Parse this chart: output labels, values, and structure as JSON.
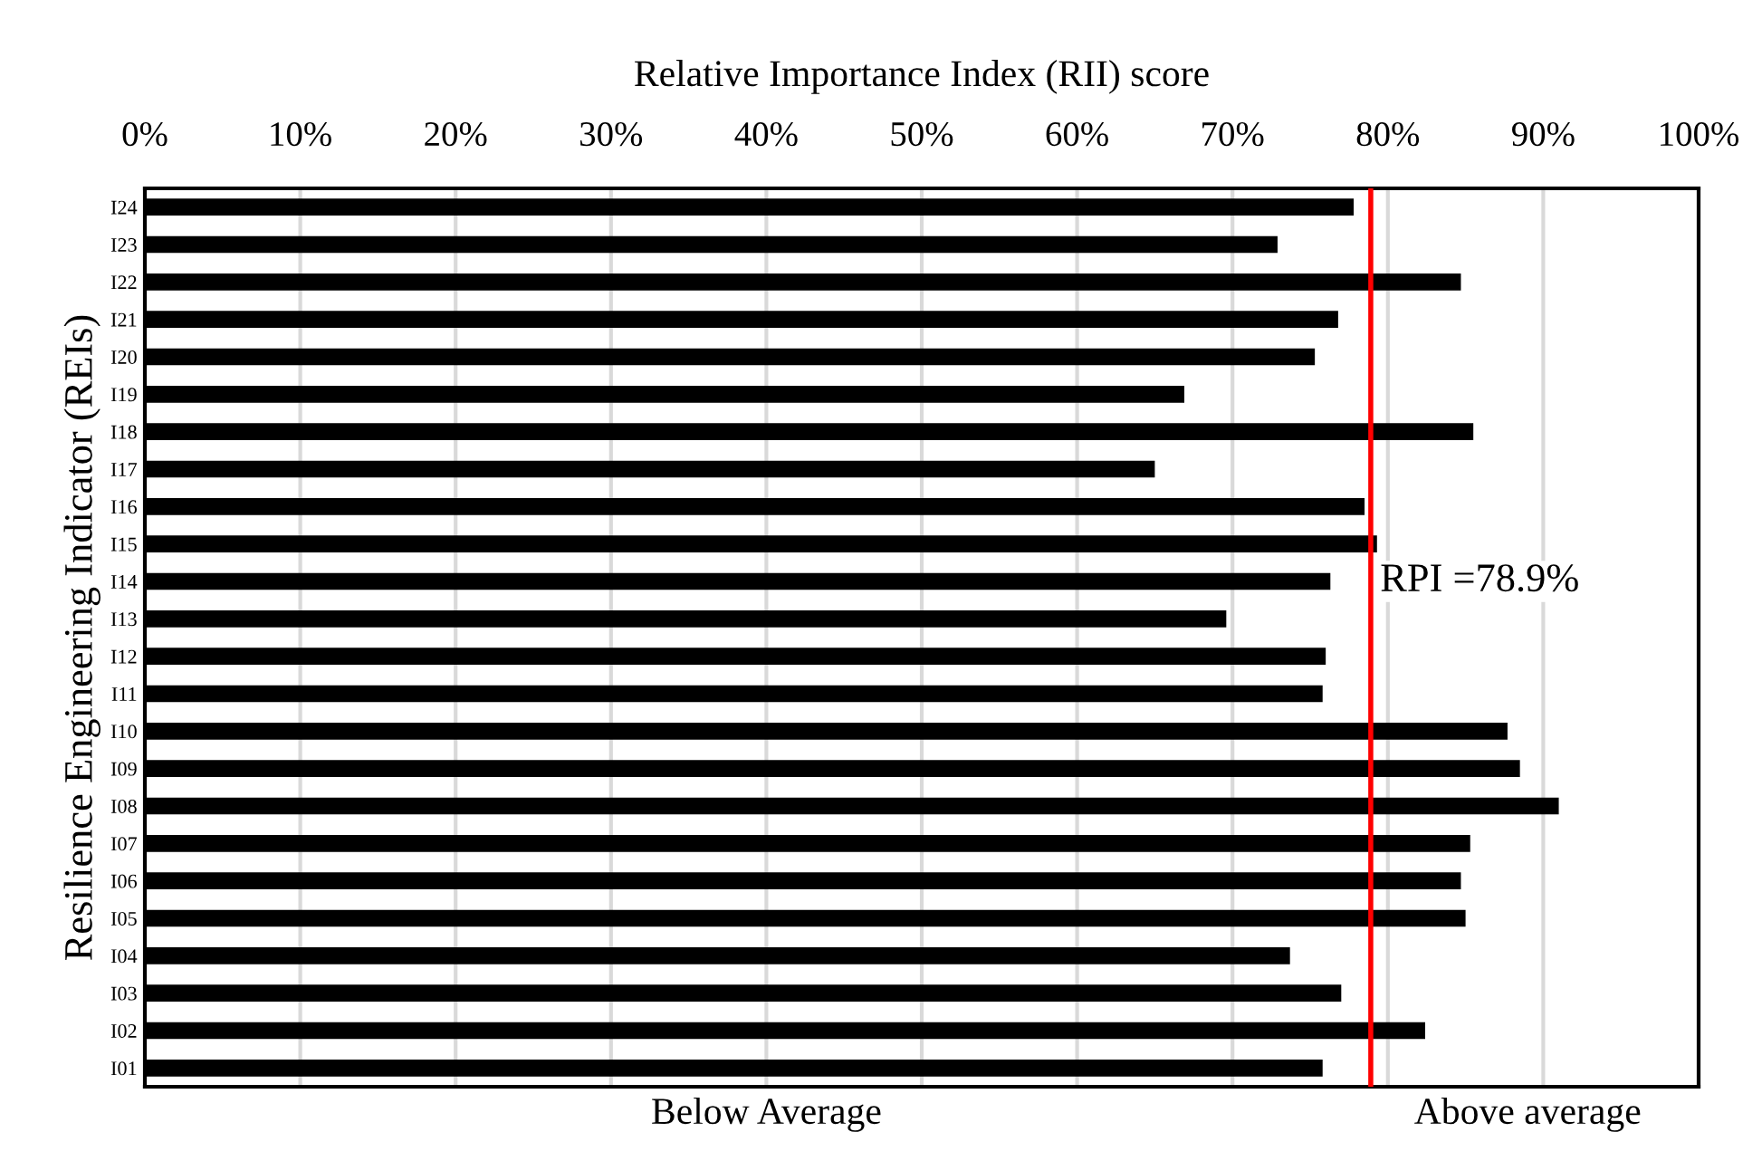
{
  "chart_data": {
    "type": "bar",
    "orientation": "horizontal",
    "xlabel": "Relative Importance Index (RII) score",
    "ylabel": "Resilience Engineering Indicator (REIs)",
    "categories": [
      "I24",
      "I23",
      "I22",
      "I21",
      "I20",
      "I19",
      "I18",
      "I17",
      "I16",
      "I15",
      "I14",
      "I13",
      "I12",
      "I11",
      "I10",
      "I09",
      "I08",
      "I07",
      "I06",
      "I05",
      "I04",
      "I03",
      "I02",
      "I01"
    ],
    "series": [
      {
        "color": "#000000",
        "values": [
          77.8,
          72.9,
          84.7,
          76.8,
          75.3,
          66.9,
          85.5,
          65.0,
          78.5,
          79.3,
          76.3,
          69.6,
          76.0,
          75.8,
          87.7,
          88.5,
          91.0,
          85.3,
          84.7,
          85.0,
          73.7,
          77.0,
          82.4,
          75.8
        ]
      }
    ],
    "xlim": [
      0,
      100
    ],
    "xticks": [
      {
        "value": 0,
        "label": "0%"
      },
      {
        "value": 10,
        "label": "10%"
      },
      {
        "value": 20,
        "label": "20%"
      },
      {
        "value": 30,
        "label": "30%"
      },
      {
        "value": 40,
        "label": "40%"
      },
      {
        "value": 50,
        "label": "50%"
      },
      {
        "value": 60,
        "label": "60%"
      },
      {
        "value": 70,
        "label": "70%"
      },
      {
        "value": 80,
        "label": "80%"
      },
      {
        "value": 90,
        "label": "90%"
      },
      {
        "value": 100,
        "label": "100%"
      }
    ],
    "grid": "x",
    "ref_lines": [
      {
        "axis": "x",
        "value": 78.9,
        "label": "RPI =78.9%",
        "color": "#ff0000",
        "line_style": "solid"
      }
    ],
    "annotations": [
      "Below Average",
      "Above average"
    ]
  }
}
